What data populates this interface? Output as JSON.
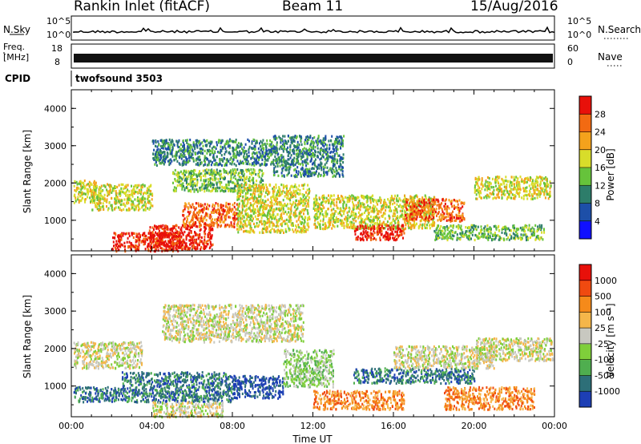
{
  "header": {
    "radar_title": "Rankin Inlet (fitACF)",
    "beam": "Beam 11",
    "date": "15/Aug/2016"
  },
  "top_panels": {
    "nsky_label": "N.Sky",
    "nsky_ticks": [
      "10^5",
      "10^0"
    ],
    "nsearch_label": "N.Search",
    "nsearch_ticks": [
      "10^5",
      "10^0"
    ],
    "freq_label_1": "Freq.",
    "freq_label_2": "[MHz]",
    "freq_ticks": [
      "18",
      "8"
    ],
    "nave_label": "Nave",
    "nave_ticks": [
      "60",
      "0"
    ],
    "cpid_label": "CPID",
    "program": "twofsound 3503"
  },
  "chart_data": [
    {
      "type": "heatmap",
      "panel": "power",
      "xlabel": "",
      "ylabel": "Slant Range [km]",
      "xlim": [
        0,
        24
      ],
      "ylim": [
        180,
        4500
      ],
      "yticks": [
        "4000",
        "3000",
        "2000",
        "1000"
      ],
      "colorbar_label": "Power [dB]",
      "colorbar_ticks": [
        "28",
        "24",
        "20",
        "16",
        "12",
        "8",
        "4"
      ],
      "colors": [
        "#1010ff",
        "#1d4fa8",
        "#2d7d6a",
        "#66c33b",
        "#d8dd2a",
        "#f4a21c",
        "#f26a12",
        "#e8100a"
      ],
      "features": [
        {
          "t0": 0.1,
          "t1": 1.2,
          "r0": 1500,
          "r1": 2100,
          "level": 4
        },
        {
          "t0": 1.0,
          "t1": 4.0,
          "r0": 1300,
          "r1": 2000,
          "level": 4
        },
        {
          "t0": 2.0,
          "t1": 5.5,
          "r0": 200,
          "r1": 700,
          "level": 7
        },
        {
          "t0": 3.8,
          "t1": 7.0,
          "r0": 250,
          "r1": 900,
          "level": 7
        },
        {
          "t0": 5.5,
          "t1": 8.2,
          "r0": 850,
          "r1": 1500,
          "level": 6
        },
        {
          "t0": 4.0,
          "t1": 10.0,
          "r0": 2500,
          "r1": 3200,
          "level": 2
        },
        {
          "t0": 5.0,
          "t1": 9.5,
          "r0": 1800,
          "r1": 2400,
          "level": 3
        },
        {
          "t0": 8.2,
          "t1": 11.8,
          "r0": 700,
          "r1": 2000,
          "level": 4
        },
        {
          "t0": 10.0,
          "t1": 13.5,
          "r0": 2200,
          "r1": 3300,
          "level": 2
        },
        {
          "t0": 12.0,
          "t1": 18.0,
          "r0": 800,
          "r1": 1700,
          "level": 4
        },
        {
          "t0": 14.0,
          "t1": 16.5,
          "r0": 500,
          "r1": 900,
          "level": 7
        },
        {
          "t0": 16.5,
          "t1": 19.5,
          "r0": 1000,
          "r1": 1600,
          "level": 6
        },
        {
          "t0": 18.0,
          "t1": 23.5,
          "r0": 500,
          "r1": 900,
          "level": 3
        },
        {
          "t0": 20.0,
          "t1": 23.8,
          "r0": 1600,
          "r1": 2200,
          "level": 4
        }
      ]
    },
    {
      "type": "heatmap",
      "panel": "velocity",
      "xlabel": "Time UT",
      "ylabel": "Slant Range [km]",
      "xlim": [
        0,
        24
      ],
      "ylim": [
        180,
        4500
      ],
      "xticks": [
        "00:00",
        "04:00",
        "08:00",
        "12:00",
        "16:00",
        "20:00",
        "00:00"
      ],
      "yticks": [
        "4000",
        "3000",
        "2000",
        "1000"
      ],
      "colorbar_label": "Velocity [m s⁻¹]",
      "colorbar_ticks": [
        "1000",
        "500",
        "100",
        "25",
        "-25",
        "-100",
        "-500",
        "-1000"
      ],
      "colors": [
        "#1d3fb5",
        "#2d6f78",
        "#4fae4f",
        "#7fcf3a",
        "#c8c8c0",
        "#f5b64a",
        "#f58a1a",
        "#f04a10",
        "#e8100a"
      ],
      "features": [
        {
          "t0": 0.1,
          "t1": 3.5,
          "r0": 1500,
          "r1": 2200,
          "level": 4
        },
        {
          "t0": 0.1,
          "t1": 2.5,
          "r0": 600,
          "r1": 1000,
          "level": 1
        },
        {
          "t0": 2.5,
          "t1": 8.0,
          "r0": 600,
          "r1": 1400,
          "level": 1
        },
        {
          "t0": 4.0,
          "t1": 7.5,
          "r0": 200,
          "r1": 600,
          "level": 4
        },
        {
          "t0": 8.0,
          "t1": 10.5,
          "r0": 700,
          "r1": 1300,
          "level": 0
        },
        {
          "t0": 4.5,
          "t1": 11.5,
          "r0": 2200,
          "r1": 3200,
          "level": 4
        },
        {
          "t0": 10.5,
          "t1": 13.0,
          "r0": 1000,
          "r1": 2000,
          "level": 3
        },
        {
          "t0": 12.0,
          "t1": 16.5,
          "r0": 400,
          "r1": 900,
          "level": 6
        },
        {
          "t0": 14.0,
          "t1": 20.0,
          "r0": 1100,
          "r1": 1500,
          "level": 1
        },
        {
          "t0": 16.0,
          "t1": 21.0,
          "r0": 1500,
          "r1": 2100,
          "level": 4
        },
        {
          "t0": 18.5,
          "t1": 23.0,
          "r0": 400,
          "r1": 1000,
          "level": 6
        },
        {
          "t0": 20.0,
          "t1": 23.9,
          "r0": 1700,
          "r1": 2300,
          "level": 4
        }
      ]
    }
  ]
}
